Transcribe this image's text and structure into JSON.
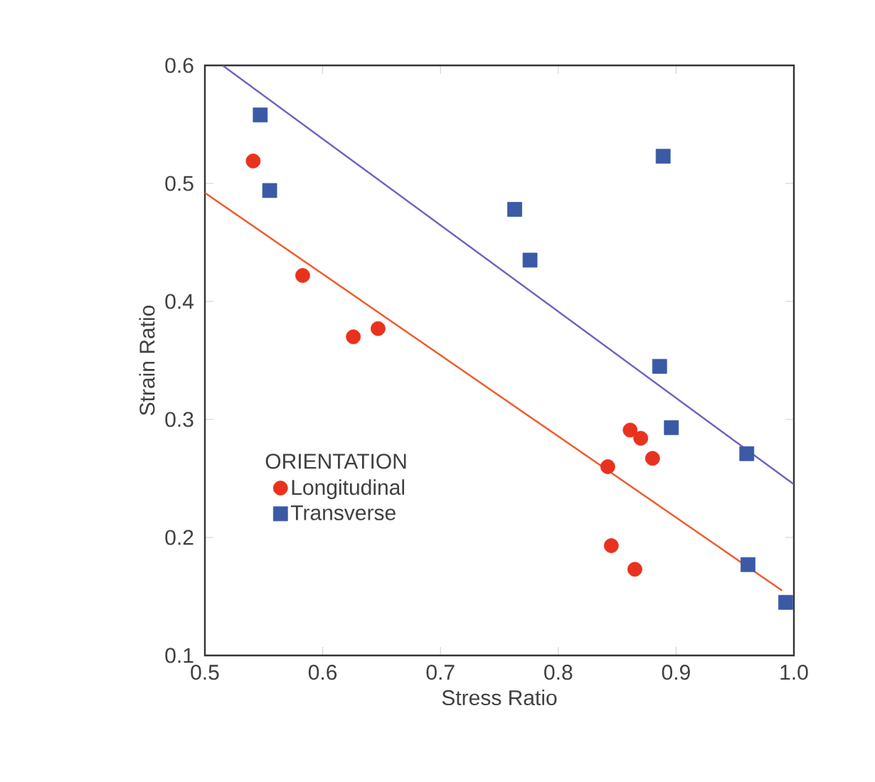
{
  "chart_data": {
    "type": "scatter",
    "xlabel": "Stress Ratio",
    "ylabel": "Strain Ratio",
    "legend_title": "ORIENTATION",
    "xlim": [
      0.5,
      1.0
    ],
    "ylim": [
      0.1,
      0.6
    ],
    "xticks": [
      0.5,
      0.6,
      0.7,
      0.8,
      0.9,
      {
        "value": 1.0,
        "label": "1.0"
      }
    ],
    "yticks": [
      0.1,
      0.2,
      0.3,
      0.4,
      0.5,
      0.6
    ],
    "grid": false,
    "legend": "bottom left",
    "series": [
      {
        "name": "Longitudinal",
        "marker": "circle",
        "color": "#e8321e",
        "x": [
          0.541,
          0.583,
          0.626,
          0.647,
          0.861,
          0.87,
          0.88,
          0.842,
          0.845,
          0.865
        ],
        "values": [
          0.519,
          0.422,
          0.37,
          0.377,
          0.291,
          0.284,
          0.267,
          0.26,
          0.193,
          0.173
        ]
      },
      {
        "name": "Transverse",
        "marker": "square",
        "color": "#3a5aa6",
        "x": [
          0.547,
          0.555,
          0.889,
          0.763,
          0.776,
          0.886,
          0.896,
          0.96,
          0.961,
          0.993
        ],
        "values": [
          0.558,
          0.494,
          0.523,
          0.478,
          0.435,
          0.345,
          0.293,
          0.271,
          0.177,
          0.145
        ]
      },
      {
        "type": "line",
        "marker": "none",
        "line_style": "solid",
        "color": "#f05a28",
        "x": [
          0.5,
          0.99
        ],
        "values": [
          0.492,
          0.155
        ]
      },
      {
        "type": "line",
        "marker": "none",
        "line_style": "solid",
        "color": "#7060c0",
        "x": [
          0.515,
          1.0
        ],
        "values": [
          0.6,
          0.245
        ]
      }
    ]
  }
}
